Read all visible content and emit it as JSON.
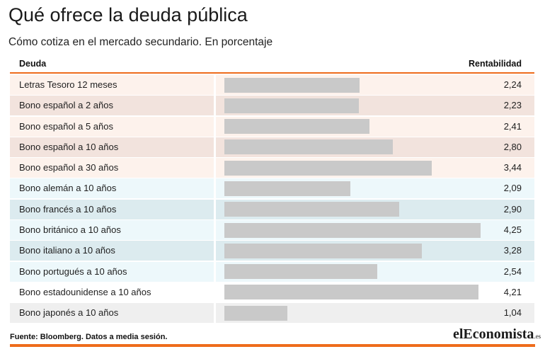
{
  "title": "Qué ofrece la deuda pública",
  "subtitle": "Cómo cotiza en el mercado secundario. En porcentaje",
  "source": "Fuente: Bloomberg. Datos a media sesión.",
  "brand": {
    "main": "elEconomista",
    "tld": ".es"
  },
  "colors": {
    "accent": "#ee6c1c",
    "bar": "#c9c9c9",
    "spain_light": "#fdf2ec",
    "spain_dark": "#f2e3dd",
    "europe_light": "#edf8fb",
    "europe_dark": "#dcebef",
    "other_light": "#ffffff",
    "other_dark": "#efefef"
  },
  "chart_data": {
    "type": "bar",
    "orientation": "horizontal",
    "title": "Qué ofrece la deuda pública",
    "subtitle": "Cómo cotiza en el mercado secundario. En porcentaje",
    "category_header": "Deuda",
    "value_header": "Rentabilidad",
    "xlim": [
      0,
      4.25
    ],
    "categories": [
      "Letras Tesoro 12 meses",
      "Bono español a 2 años",
      "Bono español a 5 años",
      "Bono español a 10 años",
      "Bono español a 30 años",
      "Bono alemán a 10 años",
      "Bono francés a 10 años",
      "Bono británico a 10 años",
      "Bono italiano a 10 años",
      "Bono portugués a 10 años",
      "Bono estadounidense a 10 años",
      "Bono japonés a 10 años"
    ],
    "values": [
      2.24,
      2.23,
      2.41,
      2.8,
      3.44,
      2.09,
      2.9,
      4.25,
      3.28,
      2.54,
      4.21,
      1.04
    ],
    "labels": [
      "2,24",
      "2,23",
      "2,41",
      "2,80",
      "3,44",
      "2,09",
      "2,90",
      "4,25",
      "3,28",
      "2,54",
      "4,21",
      "1,04"
    ],
    "row_groups": [
      "spain",
      "spain",
      "spain",
      "spain",
      "spain",
      "europe",
      "europe",
      "europe",
      "europe",
      "europe",
      "other",
      "other"
    ]
  }
}
